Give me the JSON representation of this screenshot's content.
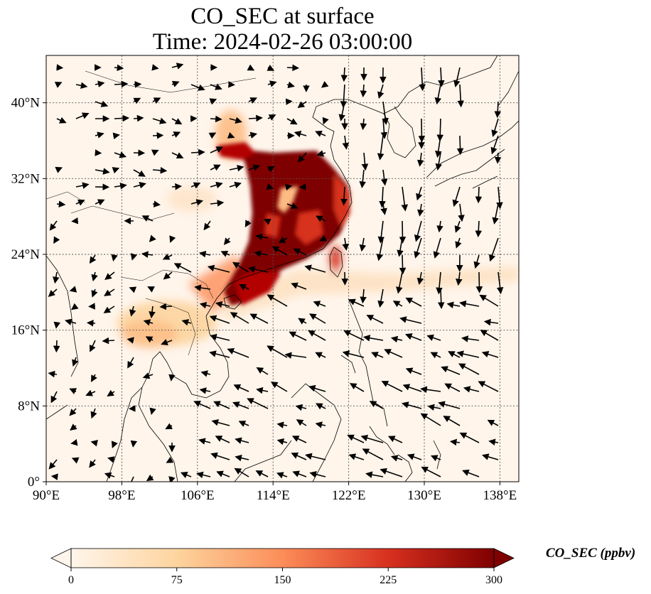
{
  "title": {
    "line1": "CO_SEC at surface",
    "line2": "Time: 2024-02-26 03:00:00"
  },
  "map": {
    "lon_range": [
      90,
      140
    ],
    "lat_range": [
      0,
      45
    ],
    "lon_ticks": [
      "90°E",
      "98°E",
      "106°E",
      "114°E",
      "122°E",
      "130°E",
      "138°E"
    ],
    "lon_tick_values": [
      90,
      98,
      106,
      114,
      122,
      130,
      138
    ],
    "lat_ticks": [
      "0°",
      "8°N",
      "16°N",
      "24°N",
      "32°N",
      "40°N"
    ],
    "lat_tick_values": [
      0,
      8,
      16,
      24,
      32,
      40
    ],
    "gridlines": true,
    "background_color": "#fff5eb"
  },
  "colorbar": {
    "label": "CO_SEC (ppbv)",
    "ticks": [
      "0",
      "75",
      "150",
      "225",
      "300"
    ],
    "tick_values": [
      0,
      75,
      150,
      225,
      300
    ],
    "range": [
      0,
      300
    ],
    "colormap": "OrRd",
    "colors": [
      "#fff5eb",
      "#fdd49e",
      "#fc8d59",
      "#d7301f",
      "#7f0000"
    ]
  }
}
